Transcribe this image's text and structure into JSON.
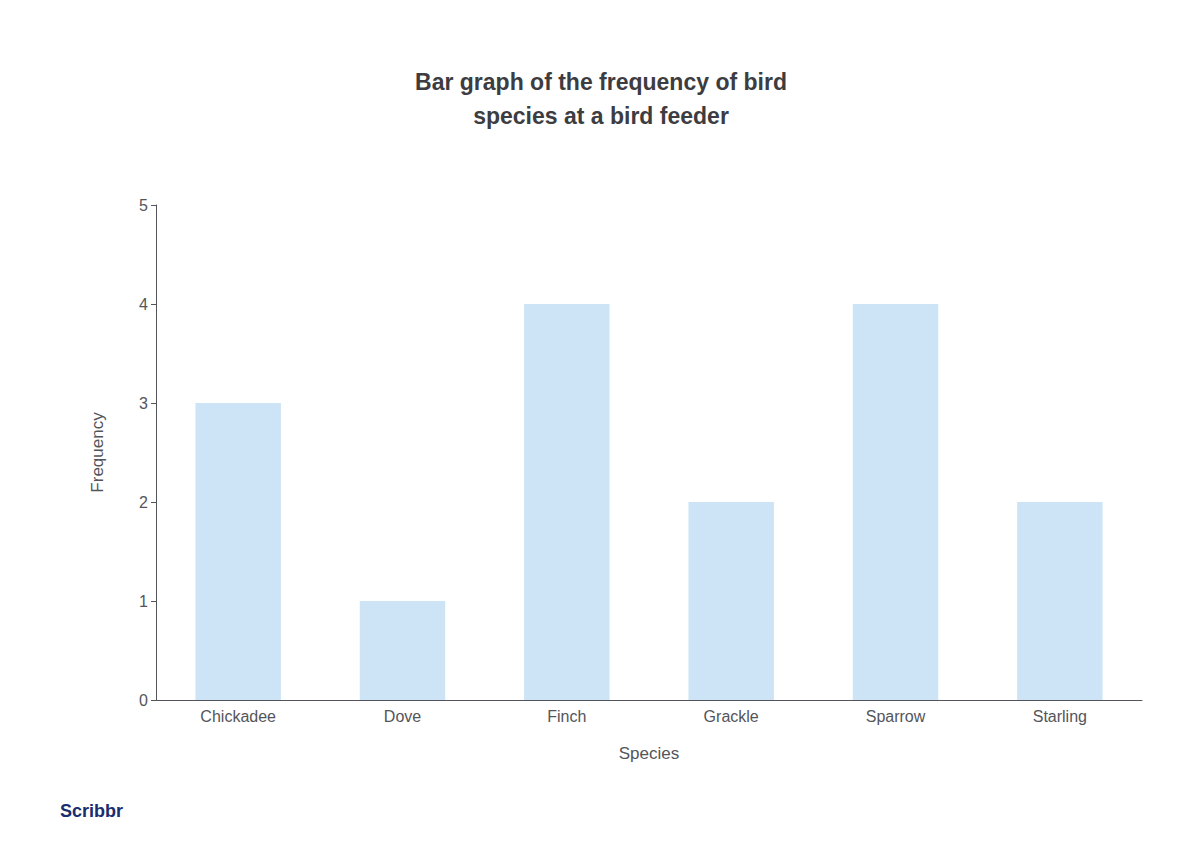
{
  "chart_data": {
    "type": "bar",
    "title": "Bar graph of the frequency of bird\nspecies at a bird feeder",
    "x_label": "Species",
    "y_label": "Frequency",
    "categories": [
      "Chickadee",
      "Dove",
      "Finch",
      "Grackle",
      "Sparrow",
      "Starling"
    ],
    "values": [
      3,
      1,
      4,
      2,
      4,
      2
    ],
    "color": "#cce4f5",
    "ylim": [
      0,
      5
    ],
    "yticks": [
      0,
      1,
      2,
      3,
      4,
      5
    ],
    "grid": false,
    "annotations": [
      "Scribbr"
    ]
  }
}
